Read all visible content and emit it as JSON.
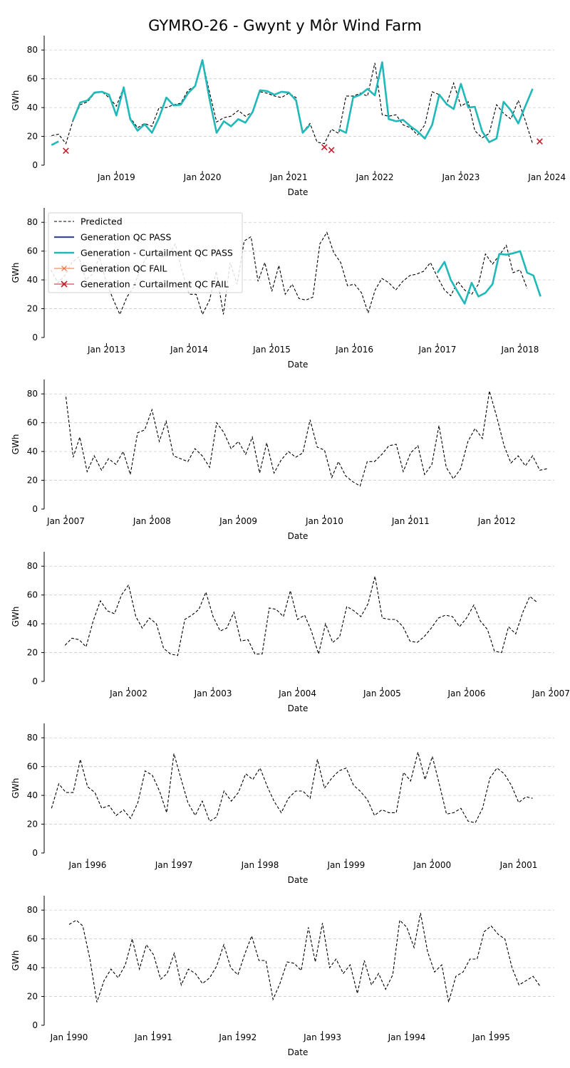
{
  "title": "GYMRO-26 - Gwynt y Môr Wind Farm",
  "colors": {
    "predicted": "#000000",
    "gen_pass": "#3b4d8c",
    "gen_curt_pass": "#20b8b8",
    "gen_fail": "#f07040",
    "gen_curt_fail": "#c81e2a",
    "grid": "#cccccc"
  },
  "legend": {
    "placement": "upper-left of panel 2",
    "entries": [
      {
        "key": "predicted",
        "label": "Predicted",
        "style": "dashed"
      },
      {
        "key": "gen_pass",
        "label": "Generation QC PASS",
        "style": "line"
      },
      {
        "key": "gen_curt_pass",
        "label": "Generation - Curtailment QC PASS",
        "style": "line-thick"
      },
      {
        "key": "gen_fail",
        "label": "Generation QC FAIL",
        "style": "line-x"
      },
      {
        "key": "gen_curt_fail",
        "label": "Generation - Curtailment QC FAIL",
        "style": "x"
      }
    ]
  },
  "chart_data": [
    {
      "type": "line",
      "xlabel": "Date",
      "ylabel": "GWh",
      "ylim": [
        0,
        90
      ],
      "yticks": [
        0,
        20,
        40,
        60,
        80
      ],
      "xlim": [
        "2018-03-01",
        "2024-02-01"
      ],
      "xticks": [
        "2019-01-01",
        "2020-01-01",
        "2021-01-01",
        "2022-01-01",
        "2023-01-01",
        "2024-01-01"
      ],
      "xticklabels": [
        "Jan 2019",
        "Jan 2020",
        "Jan 2021",
        "Jan 2022",
        "Jan 2023",
        "Jan 2024"
      ],
      "grid": true,
      "series": [
        {
          "key": "predicted",
          "start": "2018-04",
          "values": [
            20.5,
            21.5,
            15,
            31,
            42,
            44,
            50,
            51,
            47,
            41,
            54,
            33,
            26,
            29,
            27,
            40,
            40,
            42,
            43,
            52,
            55,
            73,
            50,
            30,
            33,
            34,
            38,
            34,
            37,
            51,
            50,
            48,
            47,
            50,
            47,
            23,
            29,
            16,
            15,
            25,
            22,
            48,
            48,
            50,
            48,
            71,
            35,
            34,
            35,
            28,
            26,
            21,
            28,
            51,
            49,
            42,
            57,
            41,
            44,
            24,
            19,
            22,
            42,
            36,
            32,
            45,
            31,
            15
          ]
        },
        {
          "key": "gen_curt_pass",
          "segments": [
            {
              "start": "2018-04",
              "values": [
                14,
                16.5
              ]
            },
            {
              "start": "2018-07",
              "values": [
                31,
                43.5,
                45,
                50.5,
                51,
                49,
                34.5,
                54,
                32,
                24,
                28.5,
                22.5,
                33,
                47,
                41.5,
                42,
                50,
                55,
                73,
                45,
                22.5,
                30.5,
                27,
                32,
                29.5,
                37,
                52,
                51.5,
                49,
                51,
                50.5,
                45,
                22.5,
                28
              ]
            },
            {
              "start": "2021-08",
              "values": [
                25,
                22.5,
                47,
                49,
                53,
                48.5,
                71.5,
                32,
                30.5,
                31.5,
                27,
                23.5,
                18.5,
                28,
                49,
                42.5,
                39,
                56.5,
                40,
                40.5,
                23.5,
                16,
                18.5,
                44,
                38,
                29,
                41,
                53
              ]
            }
          ]
        },
        {
          "key": "gen_curt_fail",
          "points": [
            [
              "2018-06",
              10
            ],
            [
              "2021-06",
              12.5
            ],
            [
              "2021-07",
              10.5
            ],
            [
              "2023-12",
              16.5
            ]
          ]
        }
      ]
    },
    {
      "type": "line",
      "xlabel": "Date",
      "ylabel": "GWh",
      "ylim": [
        0,
        90
      ],
      "yticks": [
        0,
        20,
        40,
        60,
        80
      ],
      "xlim": [
        "2012-04-01",
        "2018-06-01"
      ],
      "xticks": [
        "2013-01-01",
        "2014-01-01",
        "2015-01-01",
        "2016-01-01",
        "2017-01-01",
        "2018-01-01"
      ],
      "xticklabels": [
        "Jan 2013",
        "Jan 2014",
        "Jan 2015",
        "Jan 2016",
        "Jan 2017",
        "Jan 2018"
      ],
      "grid": true,
      "series": [
        {
          "key": "predicted",
          "start": "2012-05",
          "values": [
            47,
            38,
            43,
            52,
            56,
            40,
            44,
            56,
            38,
            26,
            16,
            28,
            35,
            48,
            57,
            58,
            56,
            57,
            65,
            46,
            30,
            30,
            16,
            26,
            46,
            16,
            52,
            37,
            67,
            70,
            39,
            52,
            32,
            50,
            30,
            37,
            27,
            26,
            28,
            65,
            73,
            59,
            52,
            36,
            37,
            31,
            17,
            33,
            41,
            38,
            33,
            39,
            43,
            44,
            46,
            52,
            42,
            33,
            29,
            39,
            33,
            30,
            37,
            58,
            51,
            57,
            64,
            45,
            47,
            34
          ]
        },
        {
          "key": "gen_curt_pass",
          "segments": [
            {
              "start": "2017-01",
              "values": [
                45,
                52.5,
                40,
                31.5,
                23.5,
                38,
                28.5,
                31,
                37,
                58,
                57.5,
                58.5,
                60,
                45,
                43,
                28.5
              ]
            }
          ]
        }
      ]
    },
    {
      "type": "line",
      "xlabel": "Date",
      "ylabel": "GWh",
      "ylim": [
        0,
        90
      ],
      "yticks": [
        0,
        20,
        40,
        60,
        80
      ],
      "xlim": [
        "2006-10-01",
        "2012-09-01"
      ],
      "xticks": [
        "2007-01-01",
        "2008-01-01",
        "2009-01-01",
        "2010-01-01",
        "2011-01-01",
        "2012-01-01"
      ],
      "xticklabels": [
        "Jan 2007",
        "Jan 2008",
        "Jan 2009",
        "Jan 2010",
        "Jan 2011",
        "Jan 2012"
      ],
      "grid": true,
      "series": [
        {
          "key": "predicted",
          "start": "2007-01",
          "values": [
            78,
            36,
            50,
            26,
            37,
            27,
            35,
            31,
            40,
            24,
            53,
            55,
            69,
            47,
            61,
            37,
            35,
            33,
            42,
            37,
            29,
            60,
            53,
            42,
            47,
            38,
            50,
            25,
            46,
            25,
            34,
            40,
            36,
            39,
            62,
            43,
            41,
            22,
            33,
            23,
            19,
            16,
            33,
            33,
            38,
            44,
            45,
            26,
            39,
            44,
            24,
            31,
            58,
            29,
            21,
            28,
            47,
            56,
            49,
            82,
            64,
            44,
            32,
            37,
            30,
            37,
            27,
            28
          ]
        }
      ]
    },
    {
      "type": "line",
      "xlabel": "Date",
      "ylabel": "GWh",
      "ylim": [
        0,
        90
      ],
      "yticks": [
        0,
        20,
        40,
        60,
        80
      ],
      "xlim": [
        "2001-01-01",
        "2007-01-15"
      ],
      "xticks": [
        "2002-01-01",
        "2003-01-01",
        "2004-01-01",
        "2005-01-01",
        "2006-01-01",
        "2007-01-01"
      ],
      "xticklabels": [
        "Jan 2002",
        "Jan 2003",
        "Jan 2004",
        "Jan 2005",
        "Jan 2006",
        "Jan 2007"
      ],
      "grid": true,
      "series": [
        {
          "key": "predicted",
          "start": "2001-04",
          "values": [
            25,
            30,
            29,
            24,
            42,
            56,
            49,
            47,
            60,
            67,
            45,
            37,
            44,
            40,
            23,
            19,
            18,
            43,
            46,
            50,
            62,
            45,
            35,
            37,
            48,
            28,
            29,
            19,
            19,
            51,
            50,
            45,
            63,
            43,
            46,
            35,
            19,
            40,
            27,
            31,
            52,
            49,
            45,
            54,
            73,
            44,
            43,
            43,
            38,
            28,
            27,
            31,
            37,
            44,
            46,
            45,
            38,
            44,
            53,
            42,
            36,
            21,
            20,
            38,
            33,
            48,
            59,
            55
          ]
        }
      ]
    },
    {
      "type": "line",
      "xlabel": "Date",
      "ylabel": "GWh",
      "ylim": [
        0,
        90
      ],
      "yticks": [
        0,
        20,
        40,
        60,
        80
      ],
      "xlim": [
        "1995-07-01",
        "2001-06-01"
      ],
      "xticks": [
        "1996-01-01",
        "1997-01-01",
        "1998-01-01",
        "1999-01-01",
        "2000-01-01",
        "2001-01-01"
      ],
      "xticklabels": [
        "Jan 1996",
        "Jan 1997",
        "Jan 1998",
        "Jan 1999",
        "Jan 2000",
        "Jan 2001"
      ],
      "grid": true,
      "series": [
        {
          "key": "predicted",
          "start": "1995-08",
          "values": [
            31,
            48,
            42,
            42,
            65,
            46,
            42,
            31,
            33,
            26,
            30,
            24,
            35,
            57,
            54,
            43,
            28,
            69,
            51,
            35,
            26,
            36,
            22,
            25,
            43,
            36,
            42,
            55,
            51,
            59,
            46,
            36,
            28,
            38,
            43,
            43,
            38,
            65,
            45,
            52,
            57,
            59,
            47,
            43,
            37,
            26,
            30,
            28,
            28,
            56,
            50,
            70,
            51,
            67,
            47,
            27,
            28,
            31,
            22,
            21,
            31,
            52,
            59,
            55,
            47,
            35,
            39,
            38
          ]
        }
      ]
    },
    {
      "type": "line",
      "xlabel": "Date",
      "ylabel": "GWh",
      "ylim": [
        0,
        90
      ],
      "yticks": [
        0,
        20,
        40,
        60,
        80
      ],
      "xlim": [
        "1989-09-15",
        "1995-10-01"
      ],
      "xticks": [
        "1990-01-01",
        "1991-01-01",
        "1992-01-01",
        "1993-01-01",
        "1994-01-01",
        "1995-01-01"
      ],
      "xticklabels": [
        "Jan 1990",
        "Jan 1991",
        "Jan 1992",
        "Jan 1993",
        "Jan 1994",
        "Jan 1995"
      ],
      "grid": true,
      "series": [
        {
          "key": "predicted",
          "start": "1990-01",
          "values": [
            70,
            73,
            69,
            46,
            16,
            31,
            39,
            33,
            42,
            60,
            39,
            56,
            49,
            32,
            36,
            50,
            28,
            39,
            36,
            29,
            33,
            41,
            56,
            40,
            35,
            50,
            62,
            45,
            45,
            18,
            29,
            44,
            43,
            38,
            68,
            44,
            71,
            40,
            46,
            36,
            42,
            22,
            45,
            28,
            36,
            25,
            35,
            73,
            68,
            54,
            78,
            51,
            37,
            42,
            16,
            34,
            37,
            46,
            46,
            65,
            69,
            63,
            60,
            40,
            28,
            31,
            34,
            27
          ]
        }
      ]
    }
  ]
}
